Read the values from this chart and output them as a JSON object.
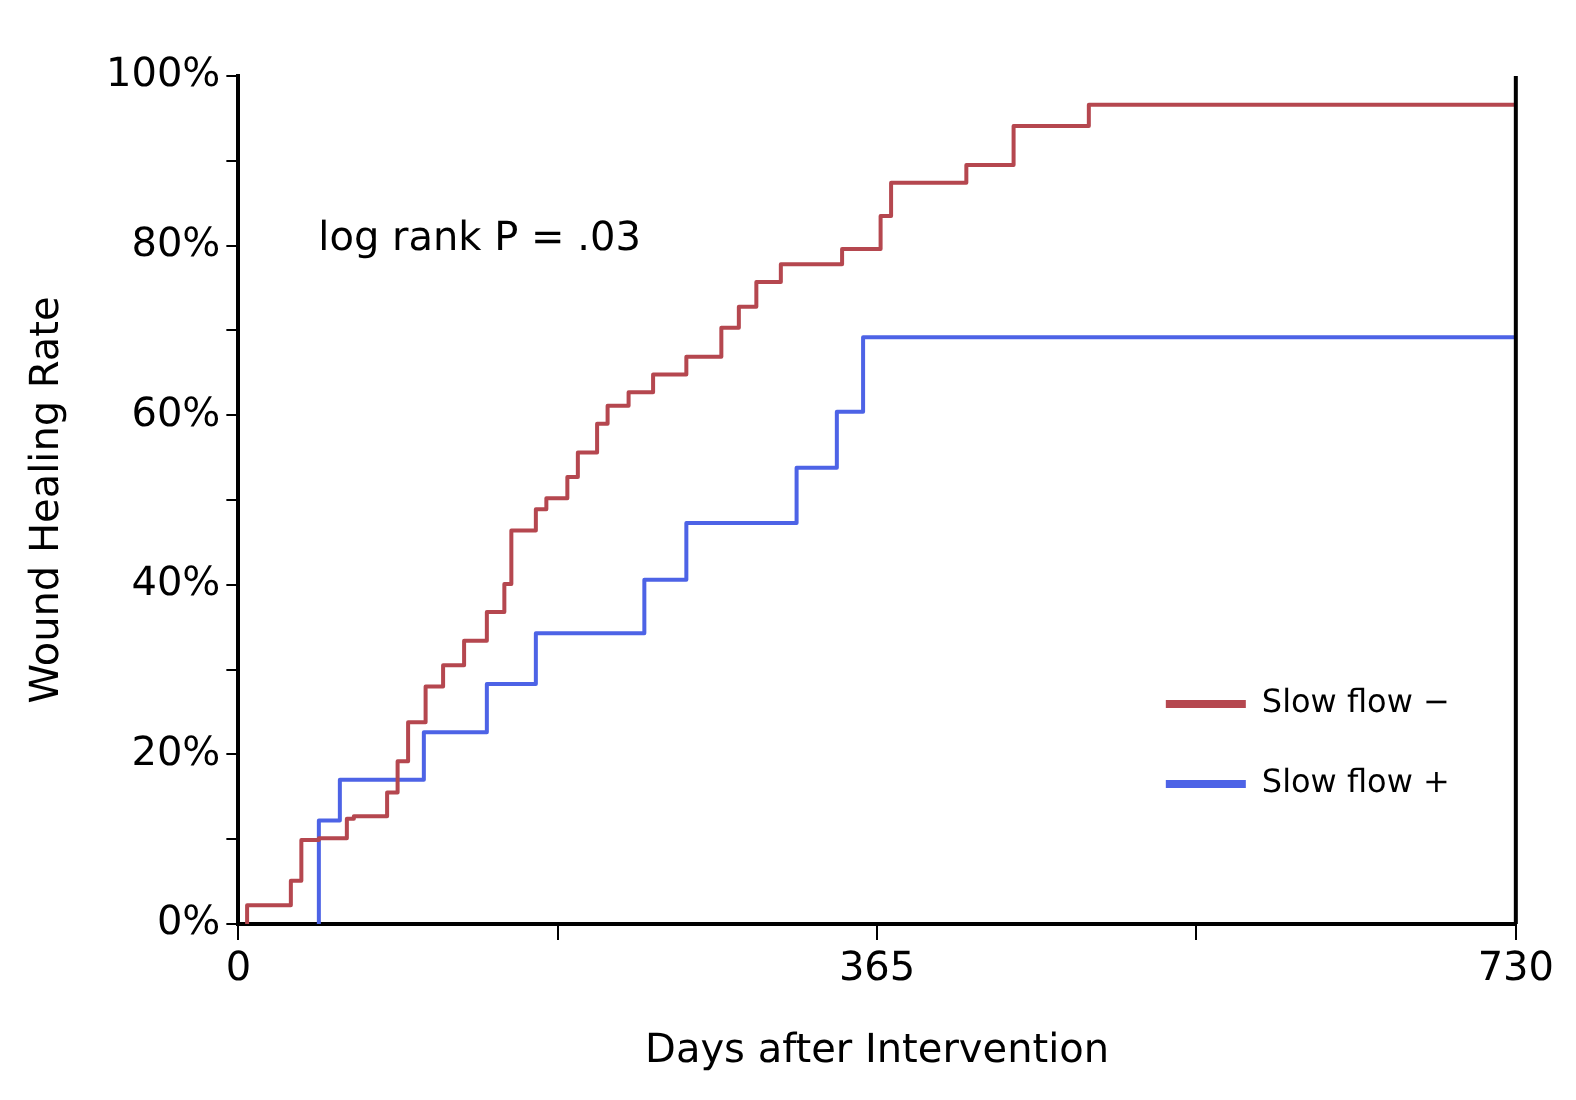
{
  "chart_data": {
    "type": "step",
    "xlabel": "Days after Intervention",
    "ylabel": "Wound Healing Rate",
    "xlim": [
      0,
      730
    ],
    "xticks": [
      0,
      {
        "value": 182.5,
        "label": null
      },
      365,
      {
        "value": 547.5,
        "label": null
      },
      730
    ],
    "ylim": [
      0,
      100
    ],
    "yticks": [
      {
        "value": 0,
        "label": "0%"
      },
      {
        "value": 10,
        "label": null
      },
      {
        "value": 20,
        "label": "20%"
      },
      {
        "value": 30,
        "label": null
      },
      {
        "value": 40,
        "label": "40%"
      },
      {
        "value": 50,
        "label": null
      },
      {
        "value": 60,
        "label": "60%"
      },
      {
        "value": 70,
        "label": null
      },
      {
        "value": 80,
        "label": "80%"
      },
      {
        "value": 90,
        "label": null
      },
      {
        "value": 100,
        "label": "100%"
      }
    ],
    "grid": false,
    "legend": "bottom right",
    "annotations": [
      "log rank P = .03"
    ],
    "series": [
      {
        "name": "Slow flow −",
        "color": "#b5474f",
        "x": [
          5,
          30,
          36,
          46,
          62,
          66,
          85,
          91,
          97,
          107,
          117,
          129,
          142,
          152,
          156,
          170,
          176,
          188,
          194,
          205,
          211,
          223,
          237,
          256,
          276,
          286,
          296,
          310,
          345,
          367,
          373,
          416,
          443,
          486,
          492,
          730
        ],
        "values": [
          0,
          2.2,
          5.1,
          9.9,
          10.1,
          12.4,
          12.7,
          15.5,
          19.2,
          23.8,
          28,
          30.5,
          33.4,
          36.8,
          40.1,
          46.4,
          48.9,
          50.2,
          52.7,
          55.6,
          59,
          61.1,
          62.7,
          64.8,
          66.9,
          70.3,
          72.8,
          75.7,
          77.8,
          79.6,
          83.5,
          87.4,
          89.5,
          94.1,
          96.6,
          96.6
        ]
      },
      {
        "name": "Slow flow +",
        "color": "#4d63e6",
        "x": [
          46,
          46,
          58,
          106,
          142,
          170,
          232,
          256,
          319,
          342,
          357,
          466,
          730
        ],
        "values": [
          0,
          7.8,
          12.2,
          17,
          22.6,
          28.3,
          34.3,
          40.6,
          47.3,
          53.8,
          60.4,
          69.2,
          69.2
        ]
      }
    ]
  }
}
